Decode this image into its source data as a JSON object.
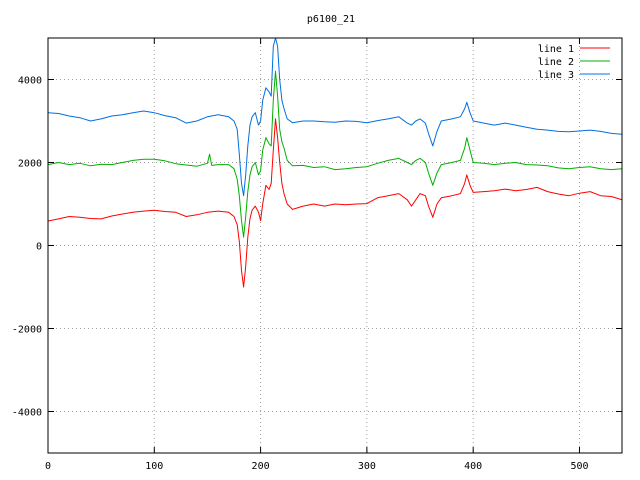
{
  "chart_data": {
    "type": "line",
    "title": "p6100_21",
    "xlabel": "",
    "ylabel": "",
    "xlim": [
      0,
      540
    ],
    "ylim": [
      -5000,
      5000
    ],
    "x_ticks": [
      0,
      100,
      200,
      300,
      400,
      500
    ],
    "y_ticks": [
      -4000,
      -2000,
      0,
      2000,
      4000
    ],
    "grid": true,
    "legend_position": "top-right",
    "series": [
      {
        "name": "line 1",
        "color": "#ff0000",
        "points": [
          [
            0,
            590
          ],
          [
            10,
            640
          ],
          [
            20,
            700
          ],
          [
            30,
            680
          ],
          [
            40,
            650
          ],
          [
            50,
            640
          ],
          [
            60,
            710
          ],
          [
            70,
            760
          ],
          [
            80,
            800
          ],
          [
            90,
            830
          ],
          [
            100,
            850
          ],
          [
            110,
            820
          ],
          [
            120,
            800
          ],
          [
            130,
            700
          ],
          [
            140,
            740
          ],
          [
            150,
            800
          ],
          [
            160,
            830
          ],
          [
            170,
            800
          ],
          [
            175,
            700
          ],
          [
            178,
            500
          ],
          [
            180,
            100
          ],
          [
            182,
            -600
          ],
          [
            184,
            -1000
          ],
          [
            186,
            -500
          ],
          [
            188,
            200
          ],
          [
            190,
            650
          ],
          [
            192,
            850
          ],
          [
            195,
            950
          ],
          [
            198,
            800
          ],
          [
            200,
            600
          ],
          [
            202,
            1000
          ],
          [
            205,
            1450
          ],
          [
            208,
            1350
          ],
          [
            210,
            1500
          ],
          [
            212,
            2300
          ],
          [
            214,
            3050
          ],
          [
            216,
            2600
          ],
          [
            218,
            2000
          ],
          [
            220,
            1500
          ],
          [
            222,
            1250
          ],
          [
            225,
            1000
          ],
          [
            230,
            870
          ],
          [
            240,
            950
          ],
          [
            250,
            1000
          ],
          [
            260,
            950
          ],
          [
            270,
            1000
          ],
          [
            280,
            980
          ],
          [
            290,
            1000
          ],
          [
            300,
            1010
          ],
          [
            310,
            1150
          ],
          [
            320,
            1200
          ],
          [
            330,
            1250
          ],
          [
            338,
            1100
          ],
          [
            342,
            950
          ],
          [
            346,
            1100
          ],
          [
            350,
            1250
          ],
          [
            355,
            1200
          ],
          [
            358,
            950
          ],
          [
            362,
            680
          ],
          [
            366,
            1000
          ],
          [
            370,
            1150
          ],
          [
            380,
            1200
          ],
          [
            388,
            1250
          ],
          [
            392,
            1500
          ],
          [
            394,
            1700
          ],
          [
            397,
            1450
          ],
          [
            400,
            1280
          ],
          [
            410,
            1300
          ],
          [
            420,
            1320
          ],
          [
            430,
            1360
          ],
          [
            440,
            1320
          ],
          [
            450,
            1350
          ],
          [
            460,
            1400
          ],
          [
            470,
            1300
          ],
          [
            480,
            1240
          ],
          [
            490,
            1200
          ],
          [
            500,
            1260
          ],
          [
            510,
            1300
          ],
          [
            520,
            1200
          ],
          [
            530,
            1180
          ],
          [
            540,
            1100
          ]
        ]
      },
      {
        "name": "line 2",
        "color": "#00b000",
        "points": [
          [
            0,
            1950
          ],
          [
            10,
            2000
          ],
          [
            20,
            1950
          ],
          [
            30,
            1980
          ],
          [
            40,
            1920
          ],
          [
            50,
            1960
          ],
          [
            60,
            1950
          ],
          [
            70,
            2000
          ],
          [
            80,
            2050
          ],
          [
            90,
            2080
          ],
          [
            100,
            2080
          ],
          [
            110,
            2040
          ],
          [
            120,
            1970
          ],
          [
            130,
            1940
          ],
          [
            140,
            1910
          ],
          [
            150,
            1980
          ],
          [
            152,
            2200
          ],
          [
            154,
            1930
          ],
          [
            160,
            1950
          ],
          [
            170,
            1950
          ],
          [
            175,
            1850
          ],
          [
            178,
            1600
          ],
          [
            180,
            1200
          ],
          [
            182,
            600
          ],
          [
            184,
            200
          ],
          [
            186,
            700
          ],
          [
            188,
            1300
          ],
          [
            190,
            1700
          ],
          [
            192,
            1900
          ],
          [
            195,
            2000
          ],
          [
            198,
            1700
          ],
          [
            200,
            1800
          ],
          [
            202,
            2300
          ],
          [
            205,
            2600
          ],
          [
            208,
            2450
          ],
          [
            210,
            2400
          ],
          [
            212,
            3500
          ],
          [
            214,
            4200
          ],
          [
            216,
            3600
          ],
          [
            218,
            2800
          ],
          [
            220,
            2500
          ],
          [
            222,
            2350
          ],
          [
            225,
            2050
          ],
          [
            230,
            1920
          ],
          [
            240,
            1930
          ],
          [
            250,
            1880
          ],
          [
            260,
            1900
          ],
          [
            270,
            1830
          ],
          [
            280,
            1850
          ],
          [
            290,
            1880
          ],
          [
            300,
            1900
          ],
          [
            310,
            1980
          ],
          [
            320,
            2050
          ],
          [
            330,
            2100
          ],
          [
            338,
            2000
          ],
          [
            342,
            1950
          ],
          [
            346,
            2050
          ],
          [
            350,
            2100
          ],
          [
            355,
            2000
          ],
          [
            358,
            1750
          ],
          [
            362,
            1450
          ],
          [
            366,
            1750
          ],
          [
            370,
            1950
          ],
          [
            380,
            2000
          ],
          [
            388,
            2050
          ],
          [
            392,
            2350
          ],
          [
            394,
            2600
          ],
          [
            397,
            2300
          ],
          [
            400,
            2000
          ],
          [
            410,
            1980
          ],
          [
            420,
            1950
          ],
          [
            430,
            1980
          ],
          [
            440,
            2000
          ],
          [
            450,
            1950
          ],
          [
            460,
            1940
          ],
          [
            470,
            1920
          ],
          [
            480,
            1870
          ],
          [
            490,
            1850
          ],
          [
            500,
            1880
          ],
          [
            510,
            1900
          ],
          [
            520,
            1850
          ],
          [
            530,
            1830
          ],
          [
            540,
            1850
          ]
        ]
      },
      {
        "name": "line 3",
        "color": "#0070e0",
        "points": [
          [
            0,
            3200
          ],
          [
            10,
            3180
          ],
          [
            20,
            3120
          ],
          [
            30,
            3080
          ],
          [
            40,
            3000
          ],
          [
            50,
            3050
          ],
          [
            60,
            3120
          ],
          [
            70,
            3150
          ],
          [
            80,
            3200
          ],
          [
            90,
            3240
          ],
          [
            100,
            3200
          ],
          [
            110,
            3130
          ],
          [
            120,
            3080
          ],
          [
            130,
            2950
          ],
          [
            140,
            3000
          ],
          [
            150,
            3100
          ],
          [
            160,
            3150
          ],
          [
            170,
            3100
          ],
          [
            175,
            3000
          ],
          [
            178,
            2800
          ],
          [
            180,
            2200
          ],
          [
            182,
            1500
          ],
          [
            184,
            1200
          ],
          [
            186,
            1700
          ],
          [
            188,
            2400
          ],
          [
            190,
            2900
          ],
          [
            192,
            3100
          ],
          [
            195,
            3200
          ],
          [
            198,
            2900
          ],
          [
            200,
            3000
          ],
          [
            202,
            3500
          ],
          [
            205,
            3800
          ],
          [
            208,
            3700
          ],
          [
            210,
            3600
          ],
          [
            212,
            4800
          ],
          [
            214,
            5000
          ],
          [
            216,
            4800
          ],
          [
            218,
            4000
          ],
          [
            220,
            3500
          ],
          [
            222,
            3300
          ],
          [
            225,
            3050
          ],
          [
            230,
            2960
          ],
          [
            240,
            3000
          ],
          [
            250,
            3000
          ],
          [
            260,
            2980
          ],
          [
            270,
            2970
          ],
          [
            280,
            3000
          ],
          [
            290,
            2990
          ],
          [
            300,
            2960
          ],
          [
            310,
            3010
          ],
          [
            320,
            3050
          ],
          [
            330,
            3100
          ],
          [
            338,
            2950
          ],
          [
            342,
            2900
          ],
          [
            346,
            3000
          ],
          [
            350,
            3050
          ],
          [
            355,
            2950
          ],
          [
            358,
            2700
          ],
          [
            362,
            2400
          ],
          [
            366,
            2750
          ],
          [
            370,
            3000
          ],
          [
            380,
            3050
          ],
          [
            388,
            3100
          ],
          [
            392,
            3300
          ],
          [
            394,
            3450
          ],
          [
            397,
            3200
          ],
          [
            400,
            3000
          ],
          [
            410,
            2950
          ],
          [
            420,
            2900
          ],
          [
            430,
            2950
          ],
          [
            440,
            2900
          ],
          [
            450,
            2850
          ],
          [
            460,
            2800
          ],
          [
            470,
            2780
          ],
          [
            480,
            2750
          ],
          [
            490,
            2740
          ],
          [
            500,
            2760
          ],
          [
            510,
            2780
          ],
          [
            520,
            2750
          ],
          [
            530,
            2700
          ],
          [
            540,
            2680
          ]
        ]
      }
    ]
  }
}
